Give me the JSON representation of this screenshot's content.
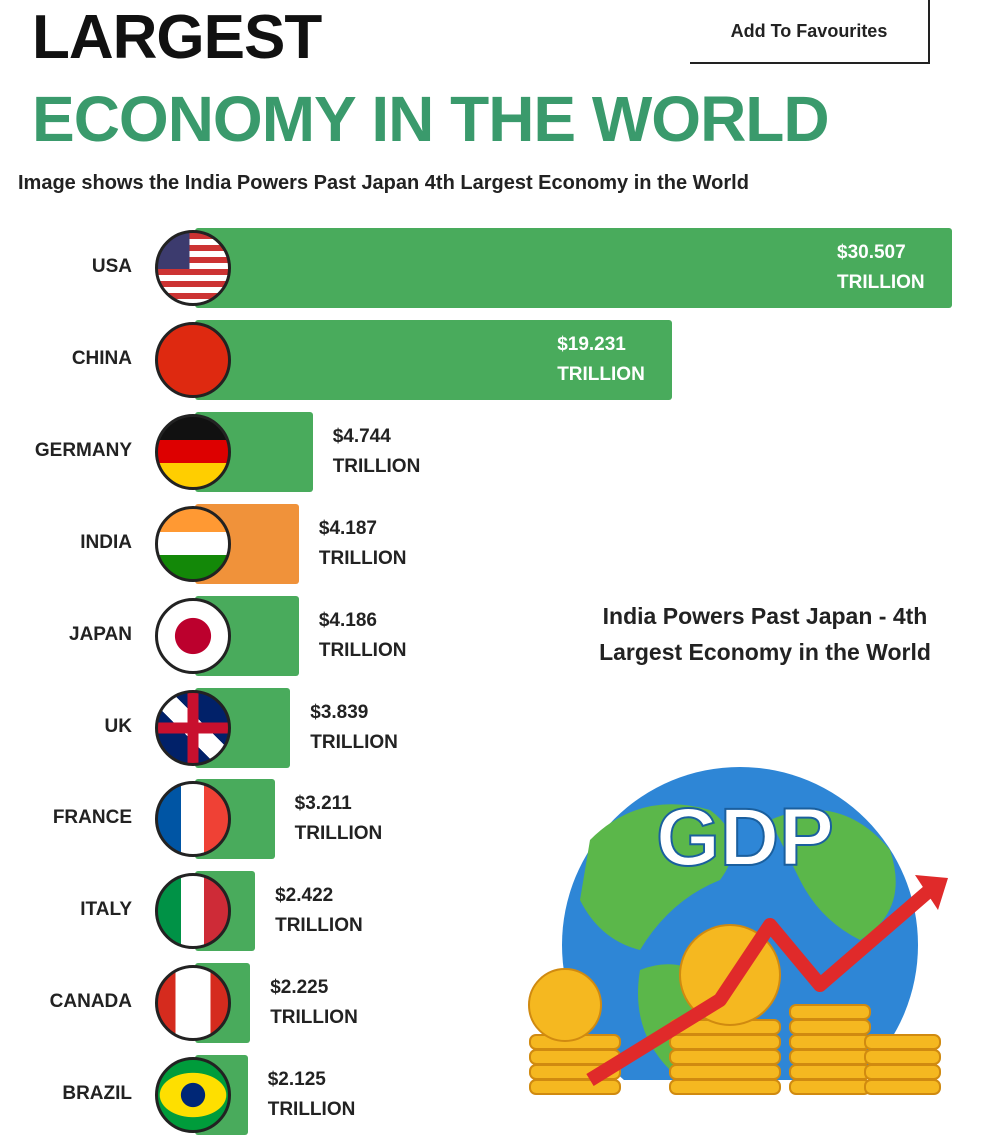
{
  "header": {
    "button": "Add To Favourites"
  },
  "chart_data": {
    "type": "bar",
    "orientation": "horizontal",
    "title": [
      "LARGEST",
      "ECONOMY IN THE WORLD"
    ],
    "subtitle": "Image shows the India Powers Past Japan 4th Largest Economy in the World",
    "categories": [
      "USA",
      "CHINA",
      "GERMANY",
      "INDIA",
      "JAPAN",
      "UK",
      "FRANCE",
      "ITALY",
      "CANADA",
      "BRAZIL"
    ],
    "values": [
      30.507,
      19.231,
      4.744,
      4.187,
      4.186,
      3.839,
      3.211,
      2.422,
      2.225,
      2.125
    ],
    "value_labels": [
      "$30.507 TRILLION",
      "$19.231 TRILLION",
      "$4.744 TRILLION",
      "$4.187 TRILLION",
      "$4.186 TRILLION",
      "$3.839 TRILLION",
      "$3.211 TRILLION",
      "$2.422 TRILLION",
      "$2.225 TRILLION",
      "$2.125 TRILLION"
    ],
    "colors": [
      "#49ab5c",
      "#49ab5c",
      "#49ab5c",
      "#f0923a",
      "#49ab5c",
      "#49ab5c",
      "#49ab5c",
      "#49ab5c",
      "#49ab5c",
      "#49ab5c"
    ],
    "annotation": "India Powers Past Japan - 4th Largest Economy in the World",
    "illustration_text": "GDP"
  }
}
